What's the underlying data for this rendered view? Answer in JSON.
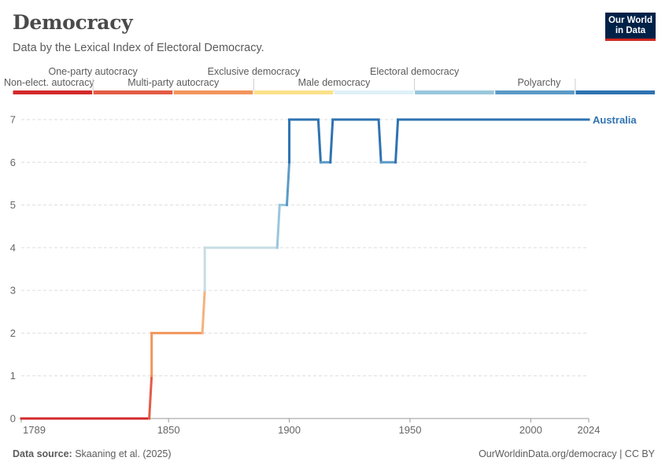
{
  "header": {
    "title": "Democracy",
    "subtitle": "Data by the Lexical Index of Electoral Democracy."
  },
  "logo": {
    "line1": "Our World",
    "line2": "in Data"
  },
  "footer": {
    "source_label": "Data source:",
    "source_text": "Skaaning et al. (2025)",
    "url": "OurWorldinData.org/democracy | CC BY"
  },
  "chart_data": {
    "type": "line",
    "title": "Democracy",
    "subtitle": "Data by the Lexical Index of Electoral Democracy.",
    "xlabel": "",
    "ylabel": "",
    "xlim": [
      1789,
      2024
    ],
    "ylim": [
      0,
      7
    ],
    "x_ticks": [
      1789,
      1850,
      1900,
      1950,
      2000,
      2024
    ],
    "y_ticks": [
      0,
      1,
      2,
      3,
      4,
      5,
      6,
      7
    ],
    "grid": "horizontal-dashed",
    "legend": {
      "placement": "top",
      "categories": [
        {
          "label": "Non-elect. autocracy",
          "color": "#d42a2a"
        },
        {
          "label": "One-party autocracy",
          "color": "#e45b45"
        },
        {
          "label": "Multi-party autocracy",
          "color": "#f2955c"
        },
        {
          "label": "Exclusive democracy",
          "color": "#fbe18a"
        },
        {
          "label": "Male democracy",
          "color": "#dff0f8"
        },
        {
          "label": "Electoral democracy",
          "color": "#99c7dc"
        },
        {
          "label": "Polyarchy",
          "color": "#5b9ac6"
        },
        {
          "label": "",
          "color": "#2f73b2"
        }
      ]
    },
    "series": [
      {
        "name": "Australia",
        "color": "#2f73b2",
        "points": [
          [
            1789,
            0
          ],
          [
            1842,
            0
          ],
          [
            1843,
            1
          ],
          [
            1843,
            2
          ],
          [
            1864,
            2
          ],
          [
            1865,
            3
          ],
          [
            1865,
            4
          ],
          [
            1895,
            4
          ],
          [
            1896,
            5
          ],
          [
            1899,
            5
          ],
          [
            1900,
            6
          ],
          [
            1900,
            7
          ],
          [
            1912,
            7
          ],
          [
            1913,
            6
          ],
          [
            1917,
            6
          ],
          [
            1918,
            7
          ],
          [
            1937,
            7
          ],
          [
            1938,
            6
          ],
          [
            1944,
            6
          ],
          [
            1945,
            7
          ],
          [
            2024,
            7
          ]
        ]
      }
    ]
  }
}
